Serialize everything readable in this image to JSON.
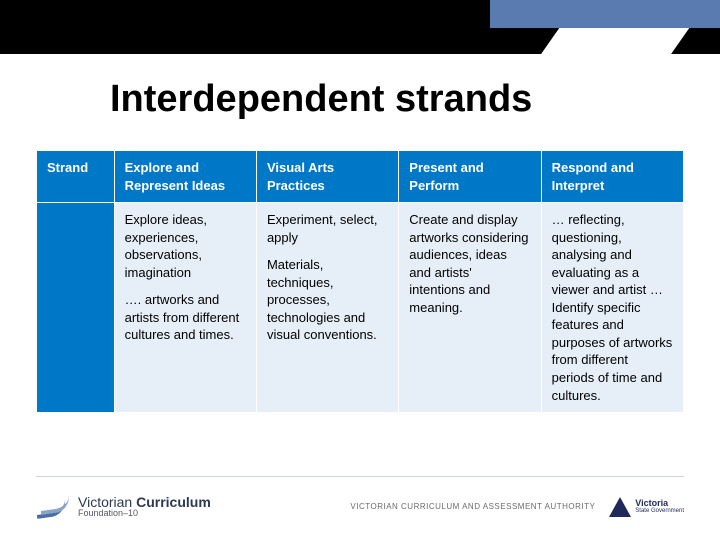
{
  "colors": {
    "header_bg": "#0078c8",
    "header_text": "#ffffff",
    "cell_bg": "#e6eef7",
    "cell_text": "#000000",
    "band_black": "#000000",
    "band_blue": "#5a7bb0",
    "page_bg": "#ffffff"
  },
  "title": "Interdependent strands",
  "table": {
    "columns": [
      {
        "label": "Strand",
        "width": "12%"
      },
      {
        "label": "Explore and Represent Ideas",
        "width": "22%"
      },
      {
        "label": "Visual Arts Practices",
        "width": "22%"
      },
      {
        "label": "Present and Perform",
        "width": "22%"
      },
      {
        "label": "Respond and Interpret",
        "width": "22%"
      }
    ],
    "rows": [
      {
        "row_header": "",
        "cells": [
          [
            "Explore ideas, experiences, observations, imagination",
            "…. artworks and artists from different cultures and times."
          ],
          [
            "Experiment, select, apply",
            "Materials, techniques, processes, technologies and visual conventions."
          ],
          [
            "Create and display artworks considering audiences, ideas and artists' intentions and meaning."
          ],
          [
            "… reflecting, questioning, analysing and evaluating as a viewer and artist …Identify specific features and purposes of artworks from different periods of time and cultures."
          ]
        ]
      }
    ]
  },
  "footer": {
    "left": {
      "line1a": "Victorian",
      "line1b": "Curriculum",
      "line2": "Foundation–10"
    },
    "vcaa": "VICTORIAN CURRICULUM\nAND ASSESSMENT AUTHORITY",
    "vic": {
      "state": "Victoria",
      "sub": "State\nGovernment"
    }
  }
}
